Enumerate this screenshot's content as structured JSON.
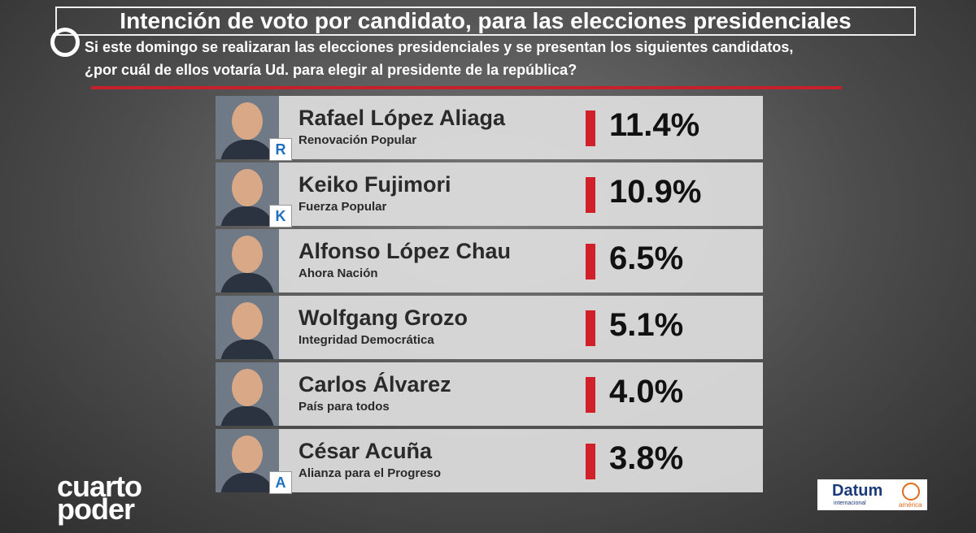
{
  "header": {
    "title": "Intención de voto por candidato, para las elecciones presidenciales",
    "question": [
      "Si este domingo se realizaran las elecciones presidenciales y se presentan los siguientes candidatos,",
      "¿por cuál de ellos votaría Ud. para elegir al presidente de la república?"
    ]
  },
  "candidates": [
    {
      "name": "Rafael López Aliaga",
      "party": "Renovación Popular",
      "percent": "11.4%",
      "badge": "R"
    },
    {
      "name": "Keiko Fujimori",
      "party": "Fuerza Popular",
      "percent": "10.9%",
      "badge": "K"
    },
    {
      "name": "Alfonso López Chau",
      "party": "Ahora Nación",
      "percent": "6.5%"
    },
    {
      "name": "Wolfgang Grozo",
      "party": "Integridad Democrática",
      "percent": "5.1%"
    },
    {
      "name": "Carlos Álvarez",
      "party": "País para todos",
      "percent": "4.0%"
    },
    {
      "name": "César Acuña",
      "party": "Alianza para el Progreso",
      "percent": "3.8%",
      "badge": "A"
    }
  ],
  "logos": {
    "channel": [
      "cuarto",
      "poder"
    ],
    "pollster": "Datum",
    "pollster_sub": "internacional",
    "partner": "américa"
  }
}
